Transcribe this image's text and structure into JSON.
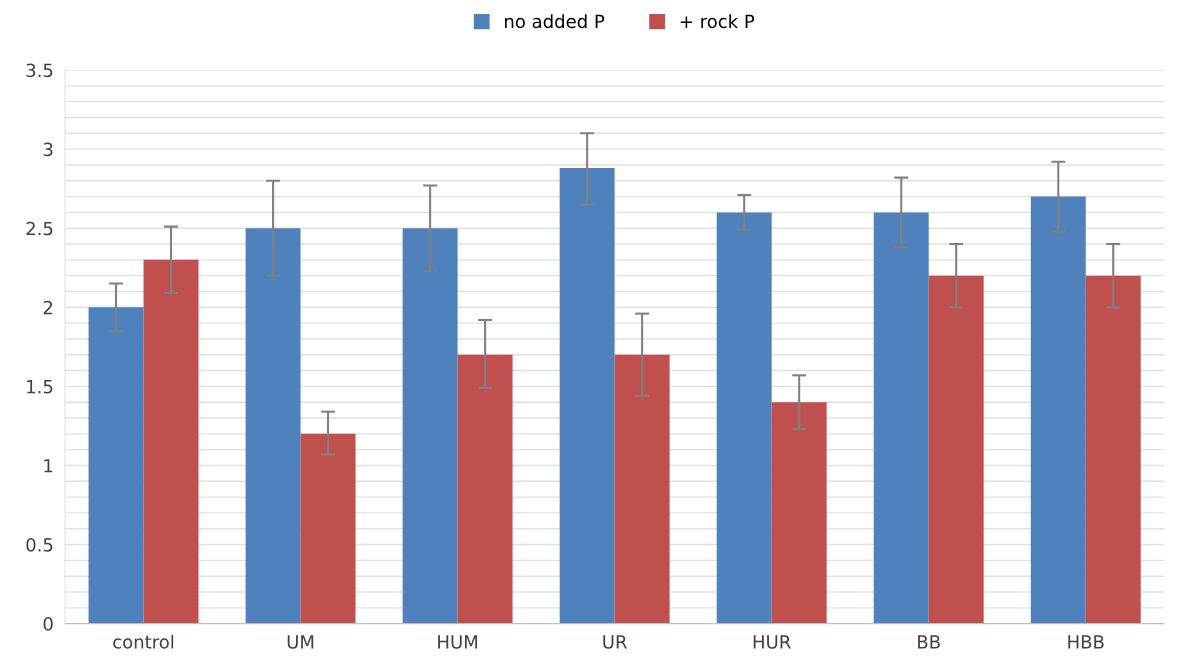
{
  "chart_data": {
    "type": "bar",
    "categories": [
      "control",
      "UM",
      "HUM",
      "UR",
      "HUR",
      "BB",
      "HBB"
    ],
    "series": [
      {
        "name": "no added P",
        "color": "#4f81bd",
        "values": [
          2.0,
          2.5,
          2.5,
          2.88,
          2.6,
          2.6,
          2.7
        ],
        "errors": [
          [
            1.85,
            2.15
          ],
          [
            2.2,
            2.8
          ],
          [
            2.23,
            2.77
          ],
          [
            2.65,
            3.1
          ],
          [
            2.49,
            2.71
          ],
          [
            2.38,
            2.82
          ],
          [
            2.48,
            2.92
          ]
        ]
      },
      {
        "name": "+ rock P",
        "color": "#c0504d",
        "values": [
          2.3,
          1.2,
          1.7,
          1.7,
          1.4,
          2.2,
          2.2
        ],
        "errors": [
          [
            2.09,
            2.51
          ],
          [
            1.07,
            1.34
          ],
          [
            1.49,
            1.92
          ],
          [
            1.44,
            1.96
          ],
          [
            1.23,
            1.57
          ],
          [
            2.0,
            2.4
          ],
          [
            2.0,
            2.4
          ]
        ]
      }
    ],
    "ylim": [
      0,
      3.5
    ],
    "yticks": [
      0,
      {
        "value": 0.1,
        "label": null
      },
      {
        "value": 0.2,
        "label": null
      },
      {
        "value": 0.3,
        "label": null
      },
      {
        "value": 0.4,
        "label": null
      },
      0.5,
      {
        "value": 0.6,
        "label": null
      },
      {
        "value": 0.7,
        "label": null
      },
      {
        "value": 0.8,
        "label": null
      },
      {
        "value": 0.9,
        "label": null
      },
      1,
      {
        "value": 1.1,
        "label": null
      },
      {
        "value": 1.2,
        "label": null
      },
      {
        "value": 1.3,
        "label": null
      },
      {
        "value": 1.4,
        "label": null
      },
      1.5,
      {
        "value": 1.6,
        "label": null
      },
      {
        "value": 1.7,
        "label": null
      },
      {
        "value": 1.8,
        "label": null
      },
      {
        "value": 1.9,
        "label": null
      },
      2,
      {
        "value": 2.1,
        "label": null
      },
      {
        "value": 2.2,
        "label": null
      },
      {
        "value": 2.3,
        "label": null
      },
      {
        "value": 2.4,
        "label": null
      },
      2.5,
      {
        "value": 2.6,
        "label": null
      },
      {
        "value": 2.7,
        "label": null
      },
      {
        "value": 2.8,
        "label": null
      },
      {
        "value": 2.9,
        "label": null
      },
      3,
      {
        "value": 3.1,
        "label": null
      },
      {
        "value": 3.2,
        "label": null
      },
      {
        "value": 3.3,
        "label": null
      },
      {
        "value": 3.4,
        "label": null
      },
      3.5
    ],
    "grid": "y",
    "legend": "top"
  }
}
